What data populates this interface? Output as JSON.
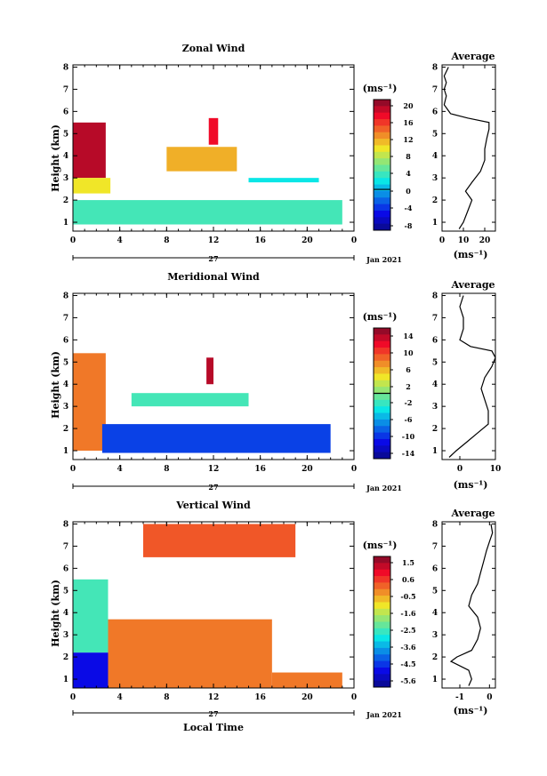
{
  "x_label": "Local Time",
  "x_ticks": [
    "0",
    "4",
    "8",
    "12",
    "16",
    "20",
    "0"
  ],
  "day_label": "27",
  "month_label": "Jan 2021",
  "y_label": "Height (km)",
  "y_ticks": [
    "1",
    "2",
    "3",
    "4",
    "5",
    "6",
    "7",
    "8"
  ],
  "unit_label": "(ms⁻¹)",
  "avg_title": "Average",
  "panels": [
    {
      "title": "Zonal Wind",
      "cbar_ticks": [
        "20",
        "16",
        "12",
        "8",
        "4",
        "0",
        "-4",
        "-8"
      ],
      "cbar_range": [
        -10,
        22
      ],
      "zero_line_value": 0,
      "avg_ticks": [
        "0",
        "10",
        "20"
      ],
      "avg_xlim": [
        0,
        25
      ]
    },
    {
      "title": "Meridional Wind",
      "cbar_ticks": [
        "14",
        "10",
        "6",
        "2",
        "-2",
        "-6",
        "-10",
        "-14"
      ],
      "cbar_range": [
        -16,
        16
      ],
      "zero_line_value": 0,
      "avg_ticks": [
        "0",
        "10"
      ],
      "avg_xlim": [
        -5,
        10
      ]
    },
    {
      "title": "Vertical Wind",
      "cbar_ticks": [
        "1.5",
        "0.6",
        "-0.5",
        "-1.6",
        "-2.5",
        "-3.6",
        "-4.5",
        "-5.6"
      ],
      "cbar_range": [
        -6,
        2
      ],
      "zero_line_value": null,
      "avg_ticks": [
        "-1",
        "0"
      ],
      "avg_xlim": [
        -1.6,
        0.2
      ]
    }
  ],
  "chart_data": [
    {
      "type": "heatmap",
      "title": "Zonal Wind",
      "xlabel": "Local Time",
      "ylabel": "Height (km)",
      "xlim": [
        0,
        24
      ],
      "ylim": [
        0.6,
        8.1
      ],
      "zlim": [
        -10,
        22
      ],
      "regions": [
        {
          "x": [
            0,
            2.8
          ],
          "y": [
            3.0,
            5.5
          ],
          "value": 20
        },
        {
          "x": [
            0,
            3.2
          ],
          "y": [
            2.3,
            3.0
          ],
          "value": 10
        },
        {
          "x": [
            0,
            23
          ],
          "y": [
            0.9,
            2.0
          ],
          "value": 4
        },
        {
          "x": [
            8,
            14
          ],
          "y": [
            3.3,
            4.4
          ],
          "value": 12
        },
        {
          "x": [
            11.6,
            12.4
          ],
          "y": [
            4.5,
            5.7
          ],
          "value": 18
        },
        {
          "x": [
            15,
            21
          ],
          "y": [
            2.8,
            3.0
          ],
          "value": 2
        }
      ],
      "average_profile": {
        "xlabel": "(ms⁻¹)",
        "height": [
          0.7,
          1.0,
          1.5,
          2.0,
          2.4,
          2.8,
          3.3,
          3.8,
          4.3,
          4.8,
          5.2,
          5.5,
          5.7,
          5.9,
          6.3,
          6.7,
          7.0,
          7.3,
          7.6,
          8.0
        ],
        "values": [
          8,
          10,
          12,
          14,
          11,
          14,
          18,
          20,
          20,
          21,
          22,
          22,
          12,
          4,
          1,
          2,
          1,
          2,
          1,
          3
        ]
      }
    },
    {
      "type": "heatmap",
      "title": "Meridional Wind",
      "xlabel": "Local Time",
      "ylabel": "Height (km)",
      "xlim": [
        0,
        24
      ],
      "ylim": [
        0.6,
        8.1
      ],
      "zlim": [
        -16,
        16
      ],
      "regions": [
        {
          "x": [
            0,
            2.8
          ],
          "y": [
            1.0,
            5.4
          ],
          "value": 8
        },
        {
          "x": [
            2.5,
            22
          ],
          "y": [
            0.9,
            2.2
          ],
          "value": -10
        },
        {
          "x": [
            5,
            15
          ],
          "y": [
            3.0,
            3.6
          ],
          "value": -2
        },
        {
          "x": [
            11.4,
            12.0
          ],
          "y": [
            4.0,
            5.2
          ],
          "value": 14
        }
      ],
      "average_profile": {
        "xlabel": "(ms⁻¹)",
        "height": [
          0.7,
          1.0,
          1.4,
          1.8,
          2.2,
          2.8,
          3.3,
          3.8,
          4.3,
          4.8,
          5.2,
          5.5,
          5.7,
          6.0,
          6.5,
          7.0,
          7.5,
          8.0
        ],
        "values": [
          -3,
          -1,
          2,
          5,
          8,
          8,
          7,
          6,
          7,
          9,
          10,
          9,
          3,
          0,
          1,
          1,
          0,
          1
        ]
      }
    },
    {
      "type": "heatmap",
      "title": "Vertical Wind",
      "xlabel": "Local Time",
      "ylabel": "Height (km)",
      "xlim": [
        0,
        24
      ],
      "ylim": [
        0.6,
        8.1
      ],
      "zlim": [
        -6,
        2
      ],
      "regions": [
        {
          "x": [
            0,
            3.0
          ],
          "y": [
            0.6,
            2.2
          ],
          "value": -5
        },
        {
          "x": [
            0,
            3.0
          ],
          "y": [
            2.2,
            5.5
          ],
          "value": -2.5
        },
        {
          "x": [
            3.0,
            17
          ],
          "y": [
            0.6,
            3.7
          ],
          "value": 0
        },
        {
          "x": [
            17,
            23
          ],
          "y": [
            0.6,
            1.3
          ],
          "value": 0
        },
        {
          "x": [
            6,
            19
          ],
          "y": [
            6.5,
            8.0
          ],
          "value": 0.3
        }
      ],
      "average_profile": {
        "xlabel": "(ms⁻¹)",
        "height": [
          0.7,
          1.0,
          1.4,
          1.8,
          2.0,
          2.3,
          2.8,
          3.3,
          3.8,
          4.3,
          4.8,
          5.3,
          5.8,
          6.3,
          6.8,
          7.2,
          7.6,
          8.0
        ],
        "values": [
          -0.7,
          -0.6,
          -0.7,
          -1.3,
          -1.1,
          -0.6,
          -0.4,
          -0.3,
          -0.4,
          -0.7,
          -0.6,
          -0.4,
          -0.3,
          -0.2,
          -0.1,
          0.0,
          0.1,
          0.05
        ]
      }
    }
  ]
}
